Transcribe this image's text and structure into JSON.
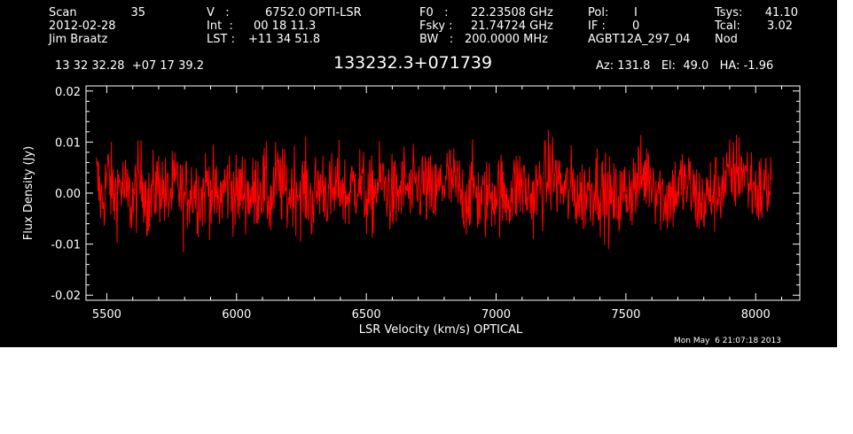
{
  "header": {
    "col1": {
      "scan_label": "Scan",
      "scan_value": "35",
      "date": "2012-02-28",
      "observer": "Jim Braatz"
    },
    "col2": {
      "v_label": "V   :",
      "v_value": "6752.0 OPTI-LSR",
      "int_label": "Int  :",
      "int_value": "00 18 11.3",
      "lst_label": "LST :",
      "lst_value": "+11 34 51.8"
    },
    "col3": {
      "f0_label": "F0   :",
      "f0_value": "22.23508 GHz",
      "fsky_label": "Fsky :",
      "fsky_value": "21.74724 GHz",
      "bw_label": "BW   :",
      "bw_value": "200.0000 MHz"
    },
    "col4": {
      "pol_label": "Pol:",
      "pol_value": "I",
      "if_label": "IF :",
      "if_value": "0",
      "project": "AGBT12A_297_04"
    },
    "col5": {
      "tsys_label": "Tsys:",
      "tsys_value": "41.10",
      "tcal_label": "Tcal:",
      "tcal_value": "3.02",
      "mode": "Nod"
    },
    "coords": "13 32 32.28  +07 17 39.2",
    "source": "133232.3+071739",
    "azel": "Az: 131.8   El:  49.0   HA: -1.96",
    "timestamp": "Mon May  6 21:07:18 2013"
  },
  "colors": {
    "background": "#000000",
    "axes": "#ffffff",
    "series": "#ff0000"
  },
  "chart_data": {
    "type": "line",
    "title": "133232.3+071739",
    "xlabel": "LSR Velocity (km/s) OPTICAL",
    "ylabel": "Flux Density (Jy)",
    "xlim": [
      5420,
      8170
    ],
    "ylim": [
      -0.021,
      0.021
    ],
    "xticks": [
      5500,
      6000,
      6500,
      7000,
      7500,
      8000
    ],
    "xtick_labels": [
      "5500",
      "6000",
      "6500",
      "7000",
      "7500",
      "8000"
    ],
    "yticks": [
      -0.02,
      -0.01,
      0.0,
      0.01,
      0.02
    ],
    "ytick_labels": [
      "-0.02",
      "-0.01",
      "0.00",
      "0.01",
      "0.02"
    ],
    "grid": false,
    "series": [
      {
        "x_start": 5460,
        "x_end": 8060,
        "noise_sigma": 0.004,
        "values": [
          0.003,
          -0.002,
          0.004,
          -0.001,
          0.002,
          0.0,
          -0.002,
          0.001,
          0.003,
          -0.003,
          0.001,
          0.002,
          -0.001,
          0.0,
          0.002,
          -0.002,
          0.001,
          0.001,
          -0.001,
          0.002,
          0.0,
          -0.002,
          0.001,
          0.002,
          -0.001,
          0.001,
          0.0,
          -0.001,
          0.002,
          0.001,
          -0.002,
          0.003,
          0.001,
          -0.001,
          0.002,
          0.0,
          0.001,
          -0.002,
          0.001,
          0.002,
          -0.001,
          0.0,
          0.002,
          -0.001,
          0.001,
          0.003,
          0.0,
          -0.002,
          0.001,
          0.002,
          0.001,
          -0.001,
          0.0,
          0.002,
          -0.001,
          0.001,
          0.002,
          0.0,
          -0.001,
          0.001,
          0.003,
          0.002,
          0.001,
          -0.001,
          0.0,
          0.001,
          -0.002,
          -0.001,
          0.0,
          0.001,
          -0.001,
          0.0,
          0.001,
          0.002,
          0.0,
          -0.001,
          0.001,
          0.002,
          0.004,
          0.003,
          0.001,
          0.0,
          0.001,
          -0.001,
          0.0,
          0.001,
          0.002,
          0.0,
          -0.001,
          -0.002,
          -0.001,
          0.0,
          0.001,
          0.002,
          0.003,
          0.004,
          0.002,
          0.0,
          -0.001,
          0.0,
          0.001,
          0.002,
          0.001,
          -0.001,
          -0.002,
          -0.001,
          0.0,
          0.001,
          0.002,
          0.003,
          0.004,
          0.005,
          0.003,
          0.001,
          0.0,
          0.001,
          0.002
        ]
      }
    ]
  }
}
